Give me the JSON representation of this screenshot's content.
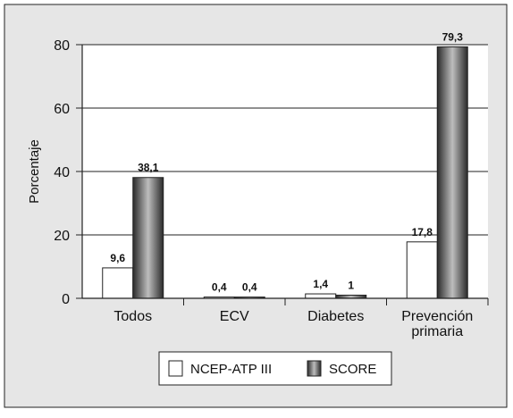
{
  "chart_data": {
    "type": "bar",
    "title": "",
    "xlabel": "",
    "ylabel": "Porcentaje",
    "ylim": [
      0,
      80
    ],
    "yticks": [
      0,
      20,
      40,
      60,
      80
    ],
    "grid": true,
    "legend_position": "bottom",
    "categories": [
      "Todos",
      "ECV",
      "Diabetes",
      "Prevención primaria"
    ],
    "category_lines": [
      [
        "Todos"
      ],
      [
        "ECV"
      ],
      [
        "Diabetes"
      ],
      [
        "Prevención",
        "primaria"
      ]
    ],
    "series": [
      {
        "name": "NCEP-ATP III",
        "values": [
          9.6,
          0.4,
          1.4,
          17.8
        ],
        "labels": [
          "9,6",
          "0,4",
          "1,4",
          "17,8"
        ],
        "color": "#ffffff",
        "style": "white"
      },
      {
        "name": "SCORE",
        "values": [
          38.1,
          0.4,
          1,
          79.3
        ],
        "labels": [
          "38,1",
          "0,4",
          "1",
          "79,3"
        ],
        "color": "#6e6e6e",
        "style": "gradient-gray"
      }
    ],
    "colors": {
      "panel_bg": "#e6e6e6",
      "plot_bg": "#ffffff",
      "axis": "#222222"
    }
  }
}
